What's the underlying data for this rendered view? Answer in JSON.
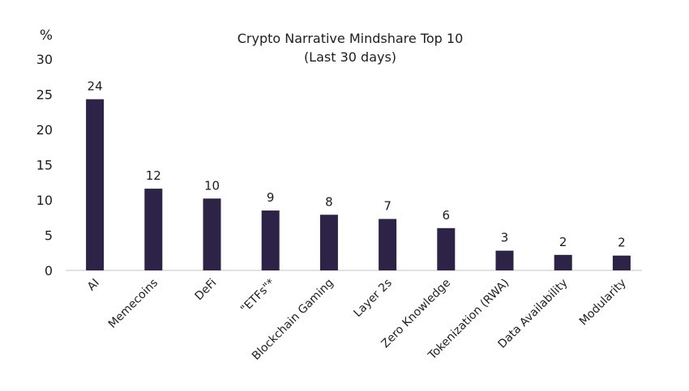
{
  "chart_data": {
    "type": "bar",
    "title": "Crypto Narrative Mindshare Top 10",
    "subtitle": "(Last 30 days)",
    "ylabel": "%",
    "xlabel": "",
    "ylim": [
      0,
      30
    ],
    "yticks": [
      0,
      5,
      10,
      15,
      20,
      25,
      30
    ],
    "grid": false,
    "bar_color": "#2d2347",
    "categories": [
      "AI",
      "Memecoins",
      "DeFi",
      "\"ETFs\"*",
      "Blockchain Gaming",
      "Layer 2s",
      "Zero Knowledge",
      "Tokenization (RWA)",
      "Data Availability",
      "Modularity"
    ],
    "values": [
      24.3,
      11.6,
      10.2,
      8.5,
      7.9,
      7.3,
      6.0,
      2.8,
      2.2,
      2.1
    ],
    "data_labels": [
      "24",
      "12",
      "10",
      "9",
      "8",
      "7",
      "6",
      "3",
      "2",
      "2"
    ]
  }
}
